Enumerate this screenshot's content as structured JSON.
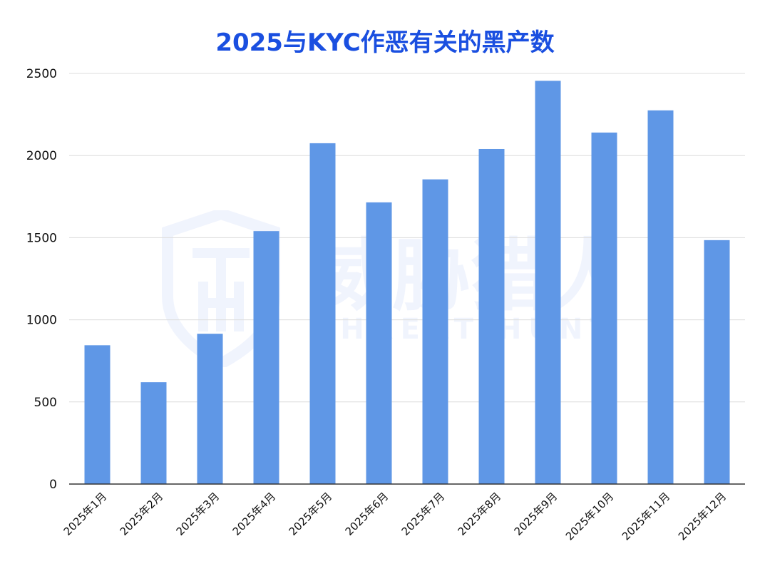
{
  "chart_data": {
    "type": "bar",
    "title": "2025与KYC作恶有关的黑产数",
    "xlabel": "",
    "ylabel": "",
    "categories": [
      "2025年1月",
      "2025年2月",
      "2025年3月",
      "2025年4月",
      "2025年5月",
      "2025年6月",
      "2025年7月",
      "2025年8月",
      "2025年9月",
      "2025年10月",
      "2025年11月",
      "2025年12月"
    ],
    "values": [
      845,
      620,
      915,
      1540,
      2075,
      1715,
      1855,
      2040,
      2455,
      2140,
      2275,
      1485
    ],
    "ylim": [
      0,
      2500
    ],
    "yticks": [
      0,
      500,
      1000,
      1500,
      2000,
      2500
    ],
    "grid": true,
    "legend": "none",
    "bar_color": "#5f97e6"
  },
  "watermark": {
    "brand_cn": "威胁猎人",
    "brand_en": "THREAT HUNTER"
  }
}
